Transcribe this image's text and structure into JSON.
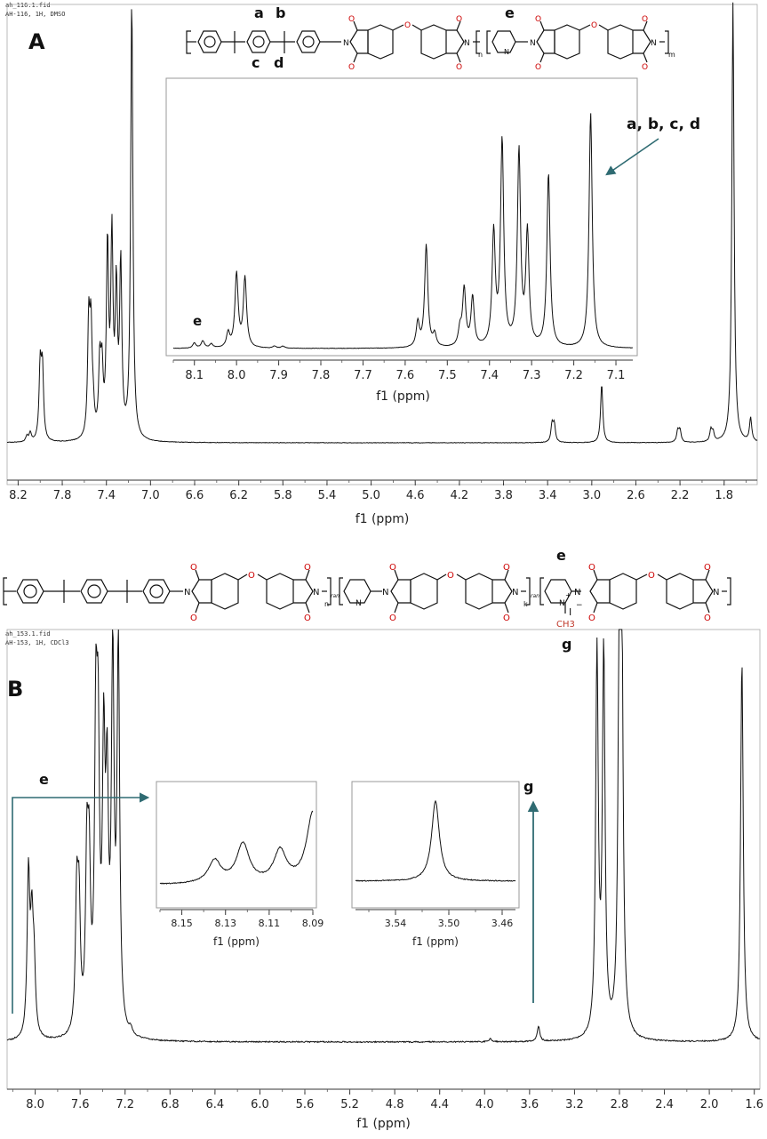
{
  "panelA": {
    "letter": "A",
    "file_name": "ah_116.1.fid",
    "file_desc": "AH-116, 1H, DMSO",
    "structure_labels": {
      "a": "a",
      "b": "b",
      "c": "c",
      "d": "d",
      "e": "e",
      "n": "n",
      "m": "m"
    },
    "peak_label_abcd": "a, b, c, d",
    "inset_peak_label": "e"
  },
  "panelB": {
    "letter": "B",
    "file_name": "ah_153.1.fid",
    "file_desc": "AH-153, 1H, CDCl3",
    "structure_labels": {
      "n": "n",
      "ran1": "ran",
      "k": "k",
      "ran2": "ran",
      "e": "e",
      "g": "g",
      "methyl": "CH3",
      "iodide": "I"
    },
    "label_e": "e",
    "label_g": "g"
  },
  "chart_data": [
    {
      "type": "line",
      "id": "A-main",
      "xlabel": "f1 (ppm)",
      "x_reversed": true,
      "xlim": [
        8.3,
        1.5
      ],
      "ticks": [
        "8.2",
        "7.8",
        "7.4",
        "7.0",
        "6.6",
        "6.2",
        "5.8",
        "5.4",
        "5.0",
        "4.6",
        "4.2",
        "3.8",
        "3.4",
        "3.0",
        "2.6",
        "2.2",
        "1.8"
      ],
      "peaks": [
        {
          "ppm": 8.12,
          "height": 0.02
        },
        {
          "ppm": 8.09,
          "height": 0.03
        },
        {
          "ppm": 8.0,
          "height": 0.25
        },
        {
          "ppm": 7.98,
          "height": 0.24
        },
        {
          "ppm": 7.56,
          "height": 0.38
        },
        {
          "ppm": 7.54,
          "height": 0.35
        },
        {
          "ppm": 7.52,
          "height": 0.08
        },
        {
          "ppm": 7.46,
          "height": 0.24
        },
        {
          "ppm": 7.44,
          "height": 0.21
        },
        {
          "ppm": 7.39,
          "height": 0.64
        },
        {
          "ppm": 7.35,
          "height": 0.66
        },
        {
          "ppm": 7.31,
          "height": 0.48
        },
        {
          "ppm": 7.27,
          "height": 0.58
        },
        {
          "ppm": 7.17,
          "height": 1.5
        },
        {
          "ppm": 3.36,
          "height": 0.06
        },
        {
          "ppm": 3.34,
          "height": 0.06
        },
        {
          "ppm": 2.91,
          "height": 0.2
        },
        {
          "ppm": 2.22,
          "height": 0.04
        },
        {
          "ppm": 2.2,
          "height": 0.04
        },
        {
          "ppm": 1.92,
          "height": 0.04
        },
        {
          "ppm": 1.9,
          "height": 0.03
        },
        {
          "ppm": 1.72,
          "height": 1.5
        },
        {
          "ppm": 1.56,
          "height": 0.08
        }
      ]
    },
    {
      "type": "line",
      "id": "A-inset",
      "xlabel": "f1 (ppm)",
      "x_reversed": true,
      "xlim": [
        8.15,
        7.06
      ],
      "ticks": [
        "8.1",
        "8.0",
        "7.9",
        "7.8",
        "7.7",
        "7.6",
        "7.5",
        "7.4",
        "7.3",
        "7.2",
        "7.1"
      ],
      "peaks": [
        {
          "ppm": 8.1,
          "height": 0.025
        },
        {
          "ppm": 8.08,
          "height": 0.035
        },
        {
          "ppm": 8.06,
          "height": 0.02
        },
        {
          "ppm": 8.02,
          "height": 0.07
        },
        {
          "ppm": 8.0,
          "height": 0.36
        },
        {
          "ppm": 7.98,
          "height": 0.34
        },
        {
          "ppm": 7.91,
          "height": 0.01
        },
        {
          "ppm": 7.89,
          "height": 0.01
        },
        {
          "ppm": 7.57,
          "height": 0.12
        },
        {
          "ppm": 7.55,
          "height": 0.5
        },
        {
          "ppm": 7.53,
          "height": 0.06
        },
        {
          "ppm": 7.47,
          "height": 0.08
        },
        {
          "ppm": 7.46,
          "height": 0.28
        },
        {
          "ppm": 7.44,
          "height": 0.24
        },
        {
          "ppm": 7.39,
          "height": 0.55
        },
        {
          "ppm": 7.37,
          "height": 1.0
        },
        {
          "ppm": 7.33,
          "height": 0.95
        },
        {
          "ppm": 7.31,
          "height": 0.55
        },
        {
          "ppm": 7.26,
          "height": 0.85
        },
        {
          "ppm": 7.16,
          "height": 1.15
        }
      ]
    },
    {
      "type": "line",
      "id": "B-main",
      "xlabel": "f1 (ppm)",
      "x_reversed": true,
      "xlim": [
        8.25,
        1.55
      ],
      "ticks": [
        "8.0",
        "7.6",
        "7.2",
        "6.8",
        "6.4",
        "6.0",
        "5.6",
        "5.2",
        "4.8",
        "4.4",
        "4.0",
        "3.6",
        "3.2",
        "2.8",
        "2.4",
        "2.0",
        "1.6"
      ],
      "peaks": [
        {
          "ppm": 8.06,
          "height": 0.55
        },
        {
          "ppm": 8.03,
          "height": 0.35
        },
        {
          "ppm": 8.01,
          "height": 0.22
        },
        {
          "ppm": 7.63,
          "height": 0.45
        },
        {
          "ppm": 7.61,
          "height": 0.4
        },
        {
          "ppm": 7.54,
          "height": 0.55
        },
        {
          "ppm": 7.52,
          "height": 0.5
        },
        {
          "ppm": 7.46,
          "height": 0.95
        },
        {
          "ppm": 7.44,
          "height": 0.85
        },
        {
          "ppm": 7.39,
          "height": 0.9
        },
        {
          "ppm": 7.36,
          "height": 0.75
        },
        {
          "ppm": 7.31,
          "height": 1.25
        },
        {
          "ppm": 7.26,
          "height": 1.3
        },
        {
          "ppm": 7.15,
          "height": 0.02
        },
        {
          "ppm": 3.95,
          "height": 0.01
        },
        {
          "ppm": 3.52,
          "height": 0.05
        },
        {
          "ppm": 3.0,
          "height": 1.3
        },
        {
          "ppm": 2.94,
          "height": 1.3
        },
        {
          "ppm": 2.8,
          "height": 1.3
        },
        {
          "ppm": 2.78,
          "height": 1.3
        },
        {
          "ppm": 1.71,
          "height": 1.3
        }
      ]
    },
    {
      "type": "line",
      "id": "B-inset-1",
      "xlabel": "f1 (ppm)",
      "x_reversed": true,
      "xlim": [
        8.16,
        8.09
      ],
      "ticks": [
        "8.15",
        "8.13",
        "8.11",
        "8.09"
      ],
      "peaks": [
        {
          "ppm": 8.135,
          "height": 0.32
        },
        {
          "ppm": 8.122,
          "height": 0.55
        },
        {
          "ppm": 8.105,
          "height": 0.45
        },
        {
          "ppm": 8.09,
          "height": 1.0
        }
      ]
    },
    {
      "type": "line",
      "id": "B-inset-2",
      "xlabel": "f1 (ppm)",
      "x_reversed": true,
      "xlim": [
        3.57,
        3.45
      ],
      "ticks": [
        "3.54",
        "3.50",
        "3.46"
      ],
      "peaks": [
        {
          "ppm": 3.51,
          "height": 1.0
        }
      ]
    }
  ]
}
